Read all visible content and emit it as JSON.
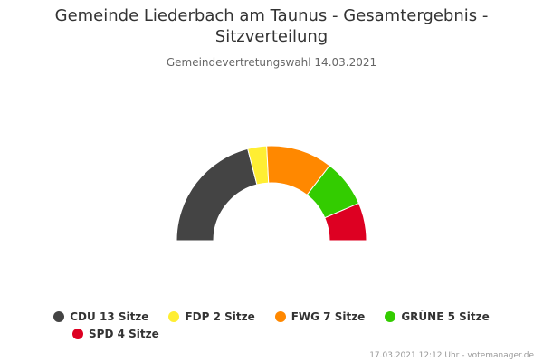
{
  "title": "Gemeinde Liederbach am Taunus - Gesamtergebnis - Sitzverteilung",
  "subtitle": "Gemeindevertretungswahl 14.03.2021",
  "credits": "17.03.2021 12:12 Uhr - votemanager.de",
  "chart_data": {
    "type": "pie",
    "variant": "semicircle-parliament",
    "title": "Gemeinde Liederbach am Taunus - Gesamtergebnis - Sitzverteilung",
    "subtitle": "Gemeindevertretungswahl 14.03.2021",
    "unit": "Sitze",
    "total_seats": 31,
    "legend_position": "bottom",
    "series": [
      {
        "name": "CDU",
        "value": 13,
        "color": "#444444",
        "legend_label": "CDU 13 Sitze"
      },
      {
        "name": "FDP",
        "value": 2,
        "color": "#ffee33",
        "legend_label": "FDP 2 Sitze"
      },
      {
        "name": "FWG",
        "value": 7,
        "color": "#ff8800",
        "legend_label": "FWG 7 Sitze"
      },
      {
        "name": "GRÜNE",
        "value": 5,
        "color": "#33cc00",
        "legend_label": "GRÜNE 5 Sitze"
      },
      {
        "name": "SPD",
        "value": 4,
        "color": "#dd0022",
        "legend_label": "SPD 4 Sitze"
      }
    ]
  }
}
